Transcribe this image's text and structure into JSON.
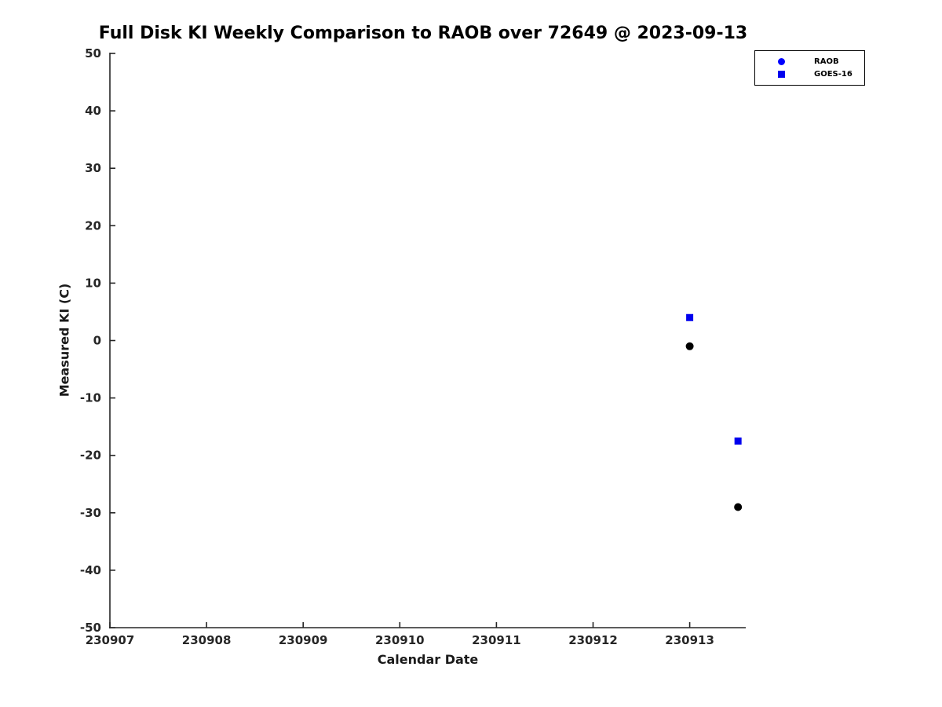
{
  "chart_data": {
    "type": "scatter",
    "title": "Full Disk KI Weekly Comparison to RAOB over 72649 @ 2023-09-13",
    "xlabel": "Calendar Date",
    "ylabel": "Measured KI (C)",
    "xlim": [
      230907,
      230913.58
    ],
    "ylim": [
      -50,
      50
    ],
    "xticks": [
      230907,
      230908,
      230909,
      230910,
      230911,
      230912,
      230913
    ],
    "yticks": [
      -50,
      -40,
      -30,
      -20,
      -10,
      0,
      10,
      20,
      30,
      40,
      50
    ],
    "grid": false,
    "axis_color": "#262626",
    "background_color": "#ffffff",
    "legend_position": "top-right",
    "series": [
      {
        "name": "RAOB",
        "marker": "circle",
        "plot_color": "#000000",
        "legend_color": "#0000ff",
        "points": [
          {
            "x": 230913.0,
            "y": -1
          },
          {
            "x": 230913.5,
            "y": -29
          }
        ]
      },
      {
        "name": "GOES-16",
        "marker": "square",
        "plot_color": "#0000ee",
        "legend_color": "#0000ee",
        "points": [
          {
            "x": 230913.0,
            "y": 4
          },
          {
            "x": 230913.5,
            "y": -17.5
          }
        ]
      }
    ]
  }
}
